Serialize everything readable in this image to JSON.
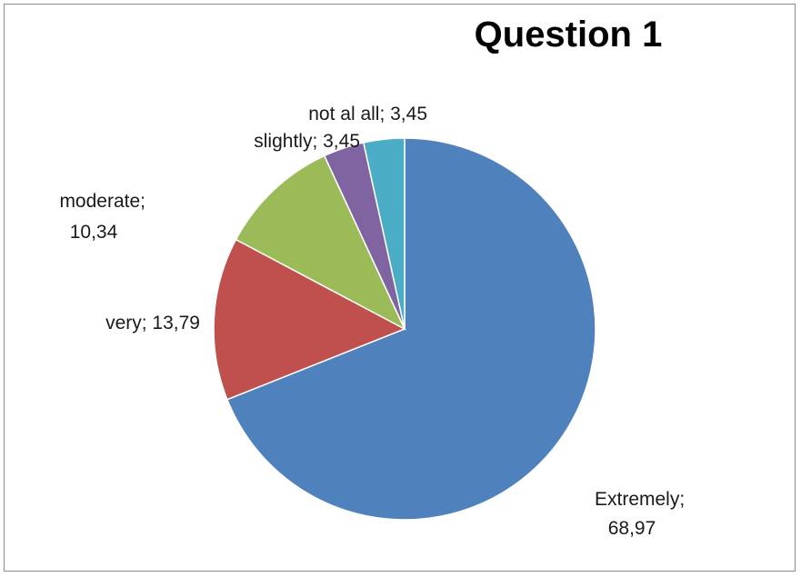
{
  "chart_data": {
    "type": "pie",
    "title": "Question 1",
    "slices": [
      {
        "label": "Extremely;",
        "value_text": "68,97",
        "value": 68.97,
        "color": "#4f81bd"
      },
      {
        "label": "very;",
        "value_text": "13,79",
        "value": 13.79,
        "color": "#c0504d"
      },
      {
        "label": "moderate;",
        "value_text": "10,34",
        "value": 10.34,
        "color": "#9bbb59"
      },
      {
        "label": "slightly;",
        "value_text": "3,45",
        "value": 3.45,
        "color": "#8064a2"
      },
      {
        "label": "not al all;",
        "value_text": "3,45",
        "value": 3.45,
        "color": "#4bacc6"
      }
    ]
  }
}
